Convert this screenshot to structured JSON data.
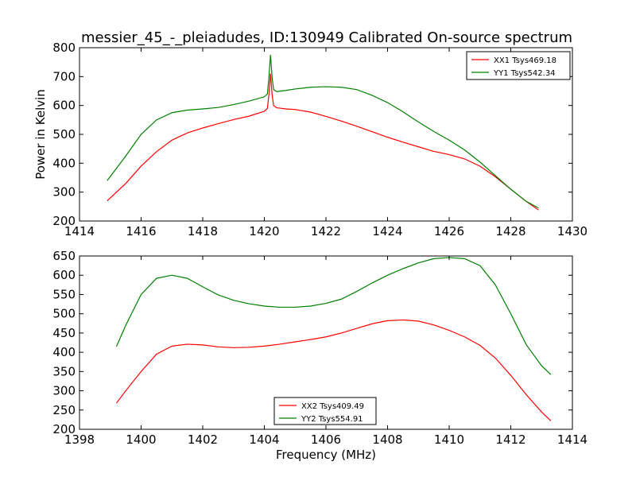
{
  "title": "messier_45_-_pleiadudes, ID:130949 Calibrated On-source spectrum",
  "chart_data": [
    {
      "type": "line",
      "xlim": [
        1414,
        1430
      ],
      "ylim": [
        200,
        800
      ],
      "xticks": [
        1414,
        1416,
        1418,
        1420,
        1422,
        1424,
        1426,
        1428,
        1430
      ],
      "yticks": [
        200,
        300,
        400,
        500,
        600,
        700,
        800
      ],
      "xlabel": "",
      "ylabel": "Power in Kelvin",
      "legend_position": "top-right",
      "grid": false,
      "series": [
        {
          "name": "XX1 Tsys469.18",
          "color": "#ff0000",
          "x": [
            1414.9,
            1415.5,
            1416.0,
            1416.5,
            1417.0,
            1417.5,
            1418.0,
            1418.5,
            1419.0,
            1419.5,
            1420.0,
            1420.1,
            1420.15,
            1420.2,
            1420.25,
            1420.3,
            1420.4,
            1420.7,
            1421.0,
            1421.5,
            1422.0,
            1422.5,
            1423.0,
            1423.5,
            1424.0,
            1424.5,
            1425.0,
            1425.5,
            1426.0,
            1426.5,
            1427.0,
            1427.5,
            1428.0,
            1428.5,
            1428.9
          ],
          "y": [
            270,
            330,
            390,
            440,
            480,
            505,
            522,
            537,
            551,
            563,
            580,
            590,
            640,
            710,
            640,
            600,
            592,
            588,
            586,
            577,
            562,
            546,
            528,
            509,
            490,
            473,
            457,
            441,
            430,
            415,
            390,
            353,
            310,
            268,
            238
          ]
        },
        {
          "name": "YY1 Tsys542.34",
          "color": "#008000",
          "x": [
            1414.9,
            1415.5,
            1416.0,
            1416.5,
            1417.0,
            1417.5,
            1418.0,
            1418.5,
            1419.0,
            1419.5,
            1420.0,
            1420.1,
            1420.15,
            1420.2,
            1420.25,
            1420.3,
            1420.4,
            1420.7,
            1421.0,
            1421.5,
            1422.0,
            1422.5,
            1423.0,
            1423.5,
            1424.0,
            1424.5,
            1425.0,
            1425.5,
            1426.0,
            1426.5,
            1427.0,
            1427.5,
            1428.0,
            1428.5,
            1428.9
          ],
          "y": [
            340,
            425,
            500,
            550,
            575,
            584,
            588,
            593,
            603,
            615,
            630,
            640,
            700,
            775,
            700,
            655,
            648,
            652,
            657,
            663,
            665,
            663,
            655,
            635,
            610,
            578,
            543,
            510,
            480,
            446,
            404,
            357,
            310,
            268,
            245
          ]
        }
      ]
    },
    {
      "type": "line",
      "xlim": [
        1398,
        1414
      ],
      "ylim": [
        200,
        650
      ],
      "xticks": [
        1398,
        1400,
        1402,
        1404,
        1406,
        1408,
        1410,
        1412,
        1414
      ],
      "yticks": [
        200,
        250,
        300,
        350,
        400,
        450,
        500,
        550,
        600,
        650
      ],
      "xlabel": "Frequency (MHz)",
      "ylabel": "",
      "legend_position": "bottom-center",
      "grid": false,
      "series": [
        {
          "name": "XX2 Tsys409.49",
          "color": "#ff0000",
          "x": [
            1399.2,
            1399.5,
            1400.0,
            1400.5,
            1401.0,
            1401.5,
            1402.0,
            1402.5,
            1403.0,
            1403.5,
            1404.0,
            1404.5,
            1405.0,
            1405.5,
            1406.0,
            1406.5,
            1407.0,
            1407.5,
            1408.0,
            1408.5,
            1409.0,
            1409.5,
            1410.0,
            1410.5,
            1411.0,
            1411.5,
            1412.0,
            1412.5,
            1413.0,
            1413.3
          ],
          "y": [
            268,
            300,
            350,
            395,
            416,
            421,
            419,
            414,
            412,
            413,
            416,
            421,
            427,
            433,
            440,
            450,
            462,
            474,
            482,
            484,
            481,
            471,
            457,
            440,
            418,
            385,
            340,
            290,
            245,
            222
          ]
        },
        {
          "name": "YY2 Tsys554.91",
          "color": "#008000",
          "x": [
            1399.2,
            1399.5,
            1400.0,
            1400.5,
            1401.0,
            1401.5,
            1402.0,
            1402.5,
            1403.0,
            1403.5,
            1404.0,
            1404.5,
            1405.0,
            1405.5,
            1406.0,
            1406.5,
            1407.0,
            1407.5,
            1408.0,
            1408.5,
            1409.0,
            1409.5,
            1410.0,
            1410.5,
            1411.0,
            1411.5,
            1412.0,
            1412.5,
            1413.0,
            1413.3
          ],
          "y": [
            415,
            470,
            550,
            592,
            600,
            592,
            570,
            549,
            535,
            526,
            520,
            517,
            517,
            520,
            527,
            538,
            558,
            580,
            600,
            617,
            632,
            643,
            646,
            643,
            625,
            575,
            500,
            420,
            365,
            342
          ]
        }
      ]
    }
  ]
}
